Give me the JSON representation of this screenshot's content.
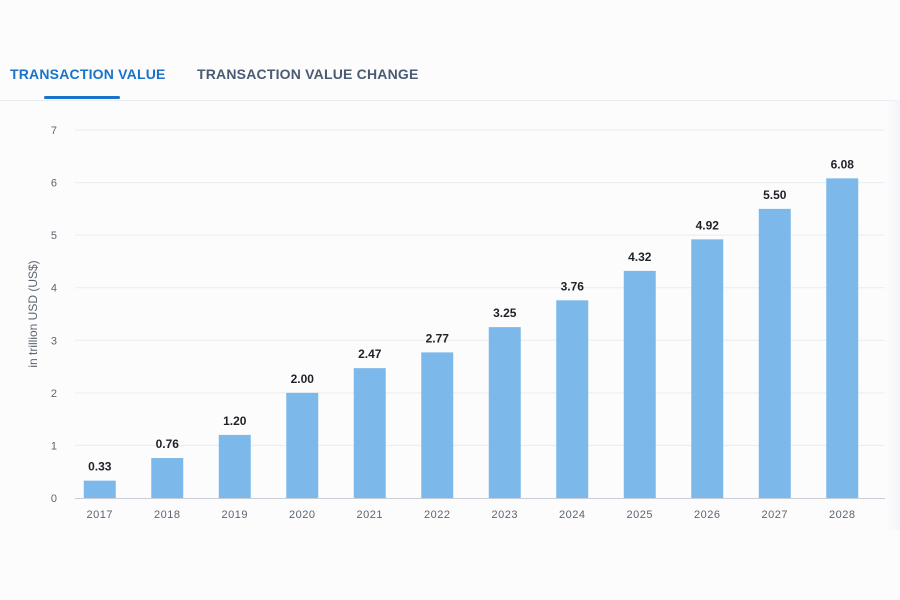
{
  "tabs": [
    {
      "label": "TRANSACTION VALUE",
      "active": true
    },
    {
      "label": "TRANSACTION VALUE CHANGE",
      "active": false
    }
  ],
  "colors": {
    "accent": "#1a73c9",
    "bar": "#7cb9ea",
    "grid": "#e9ecef",
    "axis_text": "#5d6470",
    "label_text": "#1e2228"
  },
  "chart_data": {
    "type": "bar",
    "categories": [
      "2017",
      "2018",
      "2019",
      "2020",
      "2021",
      "2022",
      "2023",
      "2024",
      "2025",
      "2026",
      "2027",
      "2028"
    ],
    "values": [
      0.33,
      0.76,
      1.2,
      2.0,
      2.47,
      2.77,
      3.25,
      3.76,
      4.32,
      4.92,
      5.5,
      6.08
    ],
    "data_labels": [
      "0.33",
      "0.76",
      "1.20",
      "2.00",
      "2.47",
      "2.77",
      "3.25",
      "3.76",
      "4.32",
      "4.92",
      "5.50",
      "6.08"
    ],
    "ylabel": "in trillion USD (US$)",
    "xlabel": "",
    "ylim": [
      0,
      7
    ],
    "yticks": [
      0,
      1,
      2,
      3,
      4,
      5,
      6,
      7
    ],
    "grid": true
  }
}
